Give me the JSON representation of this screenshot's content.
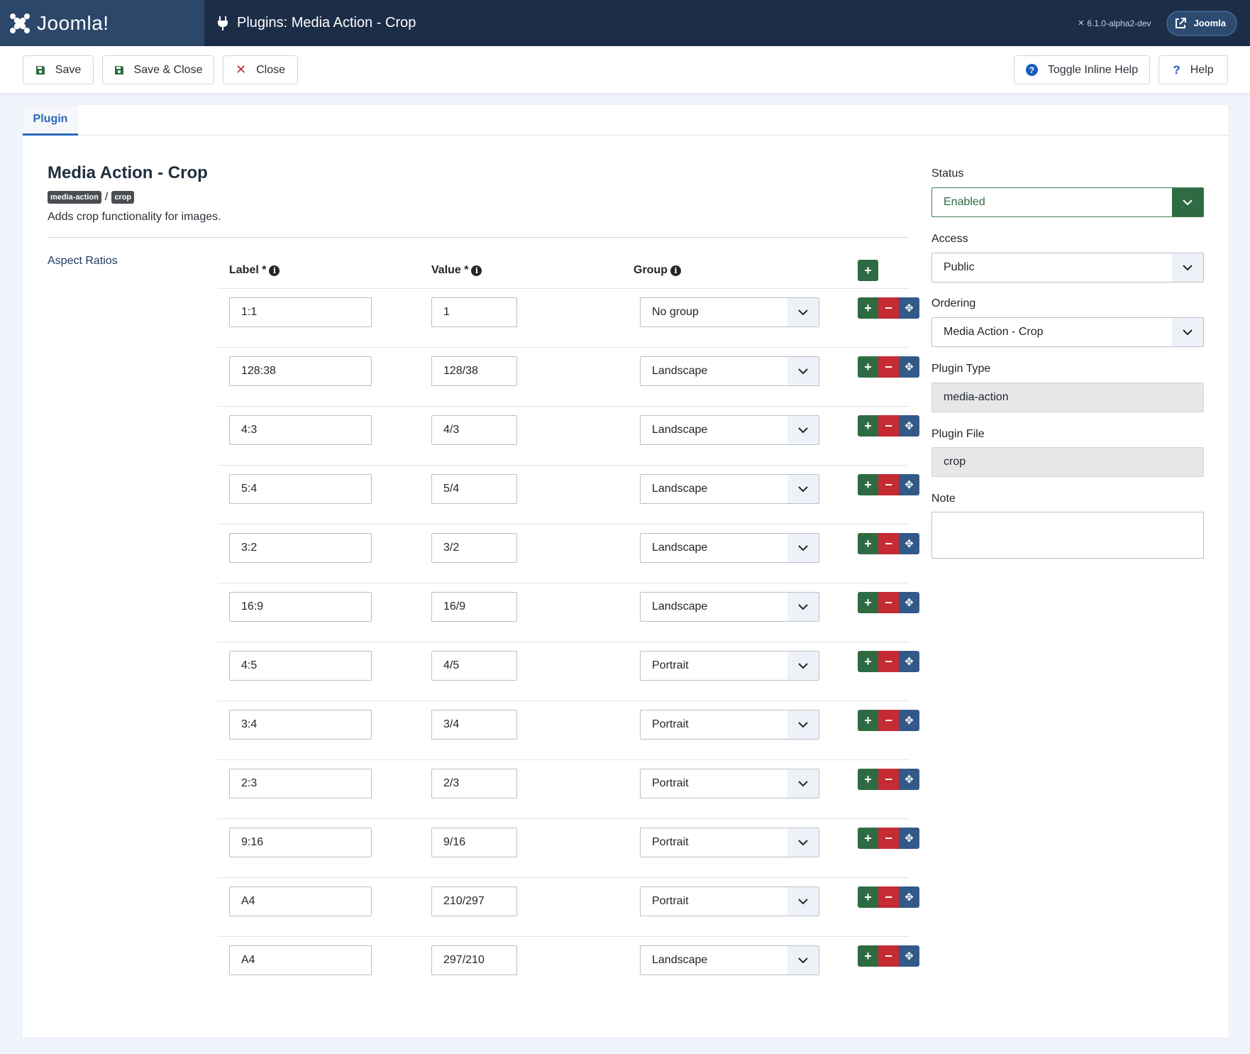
{
  "header": {
    "logo_text": "Joomla!",
    "title": "Plugins: Media Action - Crop",
    "version": "6.1.0-alpha2-dev",
    "site_button": "Joomla"
  },
  "toolbar": {
    "save": "Save",
    "save_close": "Save & Close",
    "close": "Close",
    "toggle_help": "Toggle Inline Help",
    "help": "Help"
  },
  "tabs": {
    "plugin": "Plugin"
  },
  "plugin": {
    "title": "Media Action - Crop",
    "badge_type": "media-action",
    "badge_sep": "/",
    "badge_element": "crop",
    "description": "Adds crop functionality for images."
  },
  "aspect": {
    "section_label": "Aspect Ratios",
    "col_label": "Label *",
    "col_value": "Value *",
    "col_group": "Group",
    "rows": [
      {
        "label": "1:1",
        "value": "1",
        "group": "No group"
      },
      {
        "label": "128:38",
        "value": "128/38",
        "group": "Landscape"
      },
      {
        "label": "4:3",
        "value": "4/3",
        "group": "Landscape"
      },
      {
        "label": "5:4",
        "value": "5/4",
        "group": "Landscape"
      },
      {
        "label": "3:2",
        "value": "3/2",
        "group": "Landscape"
      },
      {
        "label": "16:9",
        "value": "16/9",
        "group": "Landscape"
      },
      {
        "label": "4:5",
        "value": "4/5",
        "group": "Portrait"
      },
      {
        "label": "3:4",
        "value": "3/4",
        "group": "Portrait"
      },
      {
        "label": "2:3",
        "value": "2/3",
        "group": "Portrait"
      },
      {
        "label": "9:16",
        "value": "9/16",
        "group": "Portrait"
      },
      {
        "label": "A4",
        "value": "210/297",
        "group": "Portrait"
      },
      {
        "label": "A4",
        "value": "297/210",
        "group": "Landscape"
      }
    ]
  },
  "sidebar": {
    "status_label": "Status",
    "status_value": "Enabled",
    "access_label": "Access",
    "access_value": "Public",
    "ordering_label": "Ordering",
    "ordering_value": "Media Action - Crop",
    "type_label": "Plugin Type",
    "type_value": "media-action",
    "file_label": "Plugin File",
    "file_value": "crop",
    "note_label": "Note",
    "note_value": ""
  },
  "colors": {
    "header_bg": "#1c2d47",
    "logo_bg": "#2c4769",
    "accent_blue": "#2a69b8",
    "success_green": "#2f6b42",
    "danger_red": "#c52b33",
    "move_blue": "#325987"
  }
}
